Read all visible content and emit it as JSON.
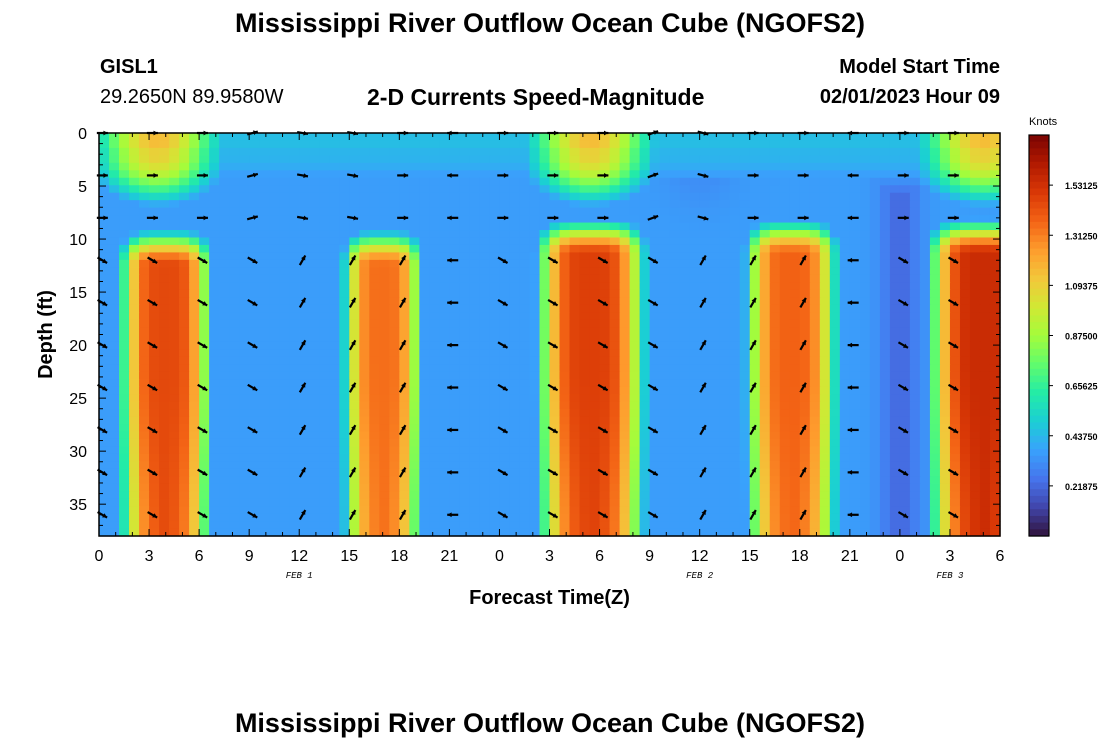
{
  "header": {
    "title": "Mississippi River Outflow Ocean Cube (NGOFS2)",
    "station": "GISL1",
    "coords": "29.2650N  89.9580W",
    "plot_title": "2-D Currents Speed-Magnitude",
    "model_label": "Model Start Time",
    "model_time": "02/01/2023 Hour 09"
  },
  "footer": {
    "title": "Mississippi River Outflow Ocean Cube (NGOFS2)"
  },
  "colors": {
    "colormap": [
      "#30123b",
      "#4145ab",
      "#4675ed",
      "#39a2fc",
      "#1bcfd4",
      "#24eca6",
      "#61fc6c",
      "#a4fc3b",
      "#d1e834",
      "#f3c63a",
      "#fe9b2d",
      "#f36315",
      "#d93806",
      "#b11901",
      "#7a0402"
    ],
    "arrow": "#000000"
  },
  "chart_data": {
    "type": "heatmap",
    "xlabel": "Forecast Time(Z)",
    "ylabel": "Depth (ft)",
    "x_ticks": [
      "0",
      "3",
      "6",
      "9",
      "12",
      "15",
      "18",
      "21",
      "0",
      "3",
      "6",
      "9",
      "12",
      "15",
      "18",
      "21",
      "0",
      "3",
      "6"
    ],
    "x_range_hours": [
      0,
      54
    ],
    "day_labels": [
      {
        "label": "FEB 1",
        "hour": 12
      },
      {
        "label": "FEB 2",
        "hour": 36
      },
      {
        "label": "FEB 3",
        "hour": 51
      }
    ],
    "y_ticks": [
      "0",
      "5",
      "10",
      "15",
      "20",
      "25",
      "30",
      "35"
    ],
    "y_range_ft": [
      0,
      38
    ],
    "colorbar": {
      "title": "Knots",
      "min": 0,
      "max": 1.75,
      "labels": [
        "1.53125",
        "1.31250",
        "1.09375",
        "0.87500",
        "0.65625",
        "0.43750",
        "0.21875"
      ],
      "label_values": [
        1.53125,
        1.3125,
        1.09375,
        0.875,
        0.65625,
        0.4375,
        0.21875
      ]
    },
    "surface_peaks_hours": [
      3.5,
      29.5,
      53
    ],
    "deep_cores": [
      {
        "center_hour": 4,
        "halfwidth_hours": 2.3,
        "top_ft": 11,
        "peak_knots": 1.45
      },
      {
        "center_hour": 17,
        "halfwidth_hours": 2.0,
        "top_ft": 11,
        "peak_knots": 1.35
      },
      {
        "center_hour": 29.5,
        "halfwidth_hours": 2.7,
        "top_ft": 10,
        "peak_knots": 1.48
      },
      {
        "center_hour": 41.5,
        "halfwidth_hours": 2.3,
        "top_ft": 10,
        "peak_knots": 1.38
      },
      {
        "center_hour": 53,
        "halfwidth_hours": 2.7,
        "top_ft": 10,
        "peak_knots": 1.55
      }
    ],
    "vector_depths_ft": [
      0,
      4,
      8,
      12,
      16,
      20,
      24,
      28,
      32,
      36
    ],
    "vector_hours": [
      0,
      3,
      6,
      9,
      12,
      15,
      18,
      21,
      24,
      27,
      30,
      33,
      36,
      39,
      42,
      45,
      48,
      51
    ],
    "vector_directions_deep_deg": [
      -30,
      -30,
      -30,
      -30,
      60,
      60,
      60,
      180,
      -30,
      -30,
      -30,
      -30,
      60,
      60,
      60,
      180,
      -30,
      -30
    ],
    "vector_directions_surface_deg": [
      0,
      0,
      0,
      15,
      -10,
      -10,
      0,
      180,
      0,
      0,
      0,
      20,
      -15,
      0,
      0,
      180,
      0,
      0
    ]
  }
}
